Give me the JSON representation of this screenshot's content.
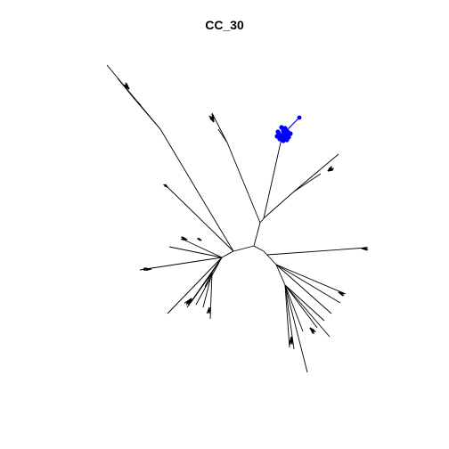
{
  "plot": {
    "title": "CC_30"
  },
  "colors": {
    "edge": "#000000",
    "highlight": "#0000ff",
    "background": "#ffffff"
  },
  "tree": {
    "type": "unrooted-phylogram",
    "highlighted_clade": "blue"
  }
}
